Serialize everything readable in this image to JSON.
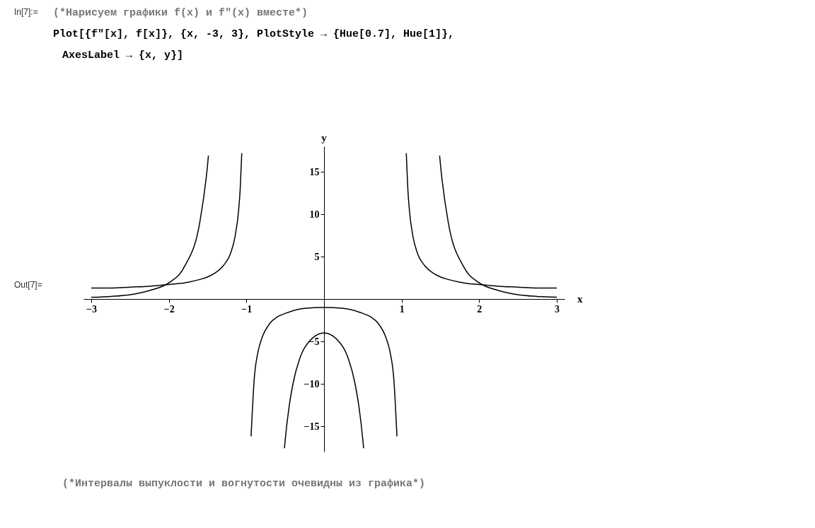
{
  "chart_data": {
    "type": "line",
    "title": "(*Нарисуем графики f(x) и f″(x) вместе*)",
    "xlabel": "x",
    "ylabel": "y",
    "annotations": [
      "In[7]:=",
      "Plot[{f″[x], f[x]}, {x, -3, 3}, PlotStyle → {Hue[0.7], Hue[1]},",
      "AxesLabel → {x, y}]",
      "Out[7]=",
      "(*Интервалы выпуклости и вогнутости очевидны из графика*)"
    ],
    "xlim": [
      -3.1,
      3.1
    ],
    "ylim": [
      -18,
      18
    ],
    "xticks": [
      -3,
      -2,
      -1,
      1,
      2,
      3
    ],
    "yticks": [
      -15,
      -10,
      -5,
      5,
      10,
      15
    ],
    "marker": "none",
    "line_style": "solid",
    "series": [
      {
        "color": "#000000",
        "x": [
          -3,
          -2.75,
          -2.5,
          -2.25,
          -2,
          -1.8,
          -1.6,
          -1.5,
          -1.49,
          -1,
          -0.51,
          -0.5,
          -0.45,
          -0.4,
          -0.3,
          -0.2,
          0,
          0.2,
          0.3,
          0.4,
          0.45,
          0.5,
          0.51,
          1,
          1.49,
          1.5,
          1.6,
          1.8,
          2,
          2.25,
          2.5,
          2.75,
          3
        ],
        "values": [
          0.2,
          0.3,
          0.5,
          1.0,
          1.9,
          3.8,
          9.1,
          15.9,
          16.9,
          null,
          -17.6,
          -16.6,
          -12.7,
          -10.0,
          -6.7,
          -5.1,
          -4.0,
          -5.1,
          -6.7,
          -10.0,
          -12.7,
          -16.6,
          -17.6,
          null,
          16.9,
          15.9,
          9.1,
          3.8,
          1.9,
          1.0,
          0.5,
          0.3,
          0.2
        ]
      },
      {
        "color": "#000000",
        "x": [
          -3,
          -2.75,
          -2.5,
          -2.25,
          -2,
          -1.8,
          -1.6,
          -1.5,
          -1.4,
          -1.3,
          -1.2,
          -1.15,
          -1.1,
          -1.08,
          -1.06,
          -1,
          -0.94,
          -0.9,
          -0.85,
          -0.8,
          -0.7,
          -0.6,
          -0.5,
          -0.25,
          0,
          0.25,
          0.5,
          0.6,
          0.7,
          0.8,
          0.85,
          0.9,
          0.94,
          1,
          1.06,
          1.08,
          1.1,
          1.15,
          1.2,
          1.3,
          1.4,
          1.5,
          1.6,
          1.8,
          2,
          2.25,
          2.5,
          2.75,
          3
        ],
        "values": [
          1.3,
          1.3,
          1.4,
          1.5,
          1.7,
          1.9,
          2.3,
          2.6,
          3.1,
          3.9,
          5.5,
          7.2,
          10.5,
          13.0,
          17.2,
          null,
          -16.2,
          -9.5,
          -6.2,
          -4.6,
          -2.9,
          -2.1,
          -1.7,
          -1.1,
          -1.0,
          -1.1,
          -1.7,
          -2.1,
          -2.9,
          -4.6,
          -6.2,
          -9.5,
          -16.2,
          null,
          17.2,
          13.0,
          10.5,
          7.2,
          5.5,
          3.9,
          3.1,
          2.6,
          2.3,
          1.9,
          1.7,
          1.5,
          1.4,
          1.3,
          1.3
        ]
      }
    ]
  }
}
